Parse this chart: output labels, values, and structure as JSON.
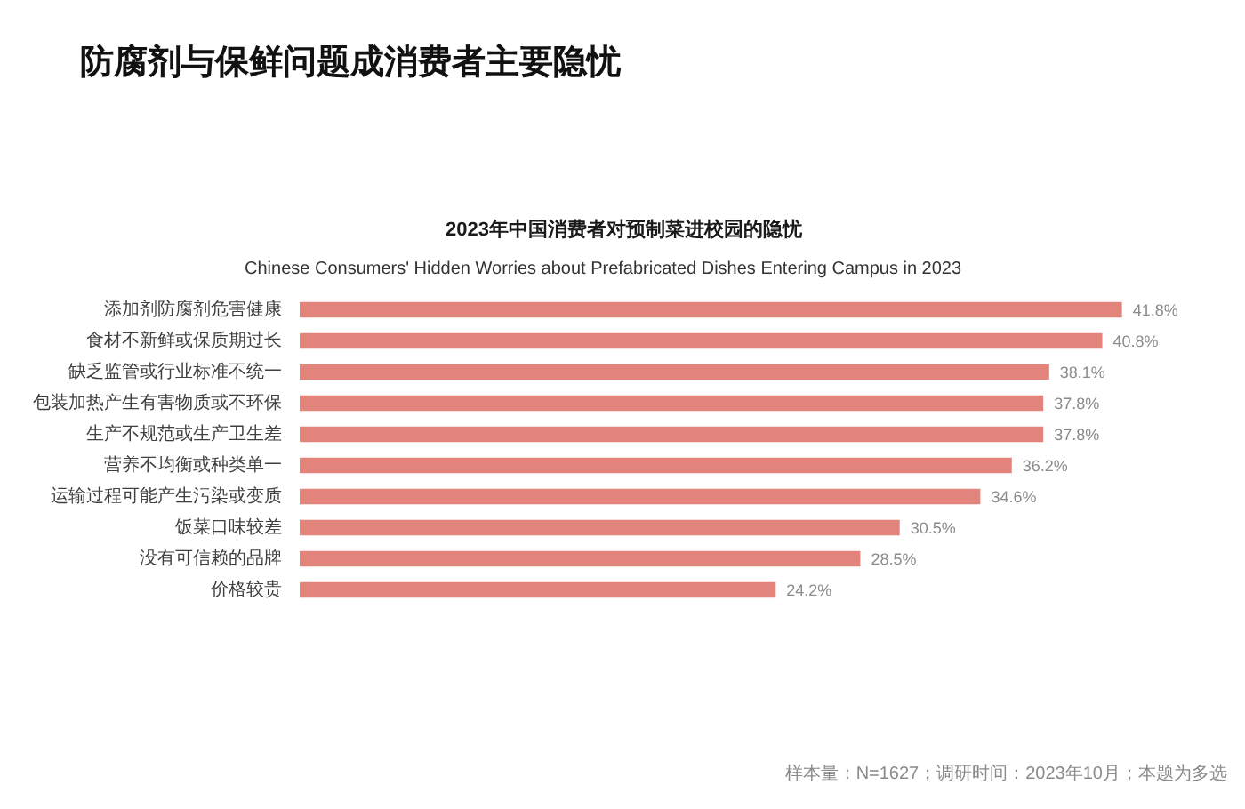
{
  "chart_data": {
    "type": "bar",
    "orientation": "horizontal",
    "title": "防腐剂与保鲜问题成消费者主要隐忧",
    "subtitle": "2023年中国消费者对预制菜进校园的隐忧",
    "annotations": [
      "Chinese Consumers' Hidden Worries about Prefabricated Dishes Entering Campus in 2023",
      "样本量：N=1627；调研时间：2023年10月；本题为多选"
    ],
    "categories": [
      "添加剂防腐剂危害健康",
      "食材不新鲜或保质期过长",
      "缺乏监管或行业标准不统一",
      "包装加热产生有害物质或不环保",
      "生产不规范或生产卫生差",
      "营养不均衡或种类单一",
      "运输过程可能产生污染或变质",
      "饭菜口味较差",
      "没有可信赖的品牌",
      "价格较贵"
    ],
    "values": [
      41.8,
      40.8,
      38.1,
      37.8,
      37.8,
      36.2,
      34.6,
      30.5,
      28.5,
      24.2
    ],
    "value_labels": [
      "41.8%",
      "40.8%",
      "38.1%",
      "37.8%",
      "37.8%",
      "36.2%",
      "34.6%",
      "30.5%",
      "28.5%",
      "24.2%"
    ],
    "color": "#e2847c",
    "tick_labels": "y"
  }
}
